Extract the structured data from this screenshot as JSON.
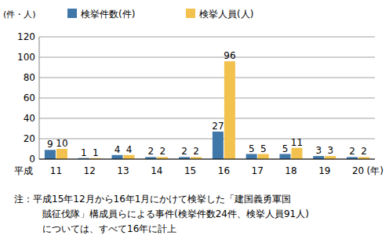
{
  "chart_data": {
    "type": "bar",
    "ylabel": "(件・人)",
    "xlabel": "平成",
    "xlabel_end": "(年)",
    "categories": [
      "11",
      "12",
      "13",
      "14",
      "15",
      "16",
      "17",
      "18",
      "19",
      "20"
    ],
    "series": [
      {
        "name": "検挙件数(件)",
        "color": "#3f77a8",
        "values": [
          9,
          1,
          4,
          2,
          2,
          27,
          5,
          5,
          3,
          2
        ]
      },
      {
        "name": "検挙人員(人)",
        "color": "#f2c14e",
        "values": [
          10,
          1,
          4,
          2,
          2,
          96,
          5,
          11,
          3,
          2
        ]
      }
    ],
    "ylim": [
      0,
      120
    ],
    "yticks": [
      0,
      20,
      40,
      60,
      80,
      100,
      120
    ],
    "grid": true,
    "legend": "top",
    "data_labels": true,
    "note": [
      "注：平成15年12月から16年1月にかけて検挙した「建国義勇軍国",
      "賊征伐隊」構成員らによる事件(検挙件数24件、検挙人員91人)",
      "については、すべて16年に計上"
    ]
  }
}
